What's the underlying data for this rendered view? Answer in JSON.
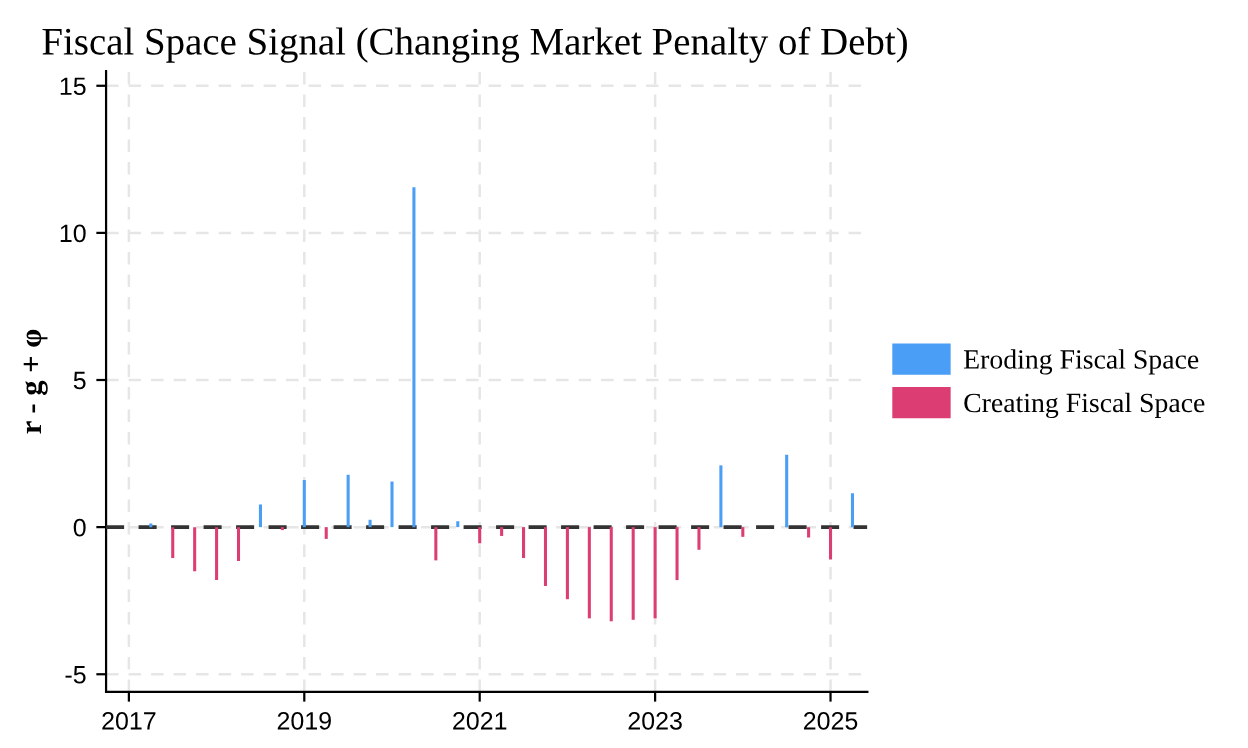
{
  "chart_data": {
    "type": "bar",
    "title": "Fiscal Space Signal (Changing Market Penalty of Debt)",
    "ylabel": "r - g + φ",
    "x": [
      2017.25,
      2017.5,
      2017.75,
      2018.0,
      2018.25,
      2018.5,
      2018.75,
      2019.0,
      2019.25,
      2019.5,
      2019.75,
      2020.0,
      2020.25,
      2020.5,
      2020.75,
      2021.0,
      2021.25,
      2021.5,
      2021.75,
      2022.0,
      2022.25,
      2022.5,
      2022.75,
      2023.0,
      2023.25,
      2023.5,
      2023.75,
      2024.0,
      2024.5,
      2024.75,
      2025.0,
      2025.25
    ],
    "series": [
      {
        "name": "Eroding Fiscal Space",
        "color": "#4a9ef5",
        "values": [
          0.12,
          null,
          null,
          null,
          null,
          0.77,
          null,
          1.6,
          null,
          1.78,
          0.25,
          1.55,
          11.55,
          null,
          0.2,
          null,
          null,
          null,
          null,
          null,
          null,
          null,
          null,
          null,
          null,
          null,
          2.1,
          null,
          2.46,
          null,
          null,
          1.15
        ]
      },
      {
        "name": "Creating Fiscal Space",
        "color": "#dc3e73",
        "values": [
          null,
          -1.05,
          -1.5,
          -1.8,
          -1.15,
          null,
          -0.1,
          null,
          -0.4,
          null,
          null,
          null,
          null,
          -1.13,
          null,
          -0.55,
          -0.3,
          -1.05,
          -2.0,
          -2.45,
          -3.1,
          -3.2,
          -3.15,
          -3.1,
          -1.8,
          -0.77,
          null,
          -0.33,
          null,
          -0.35,
          -1.1,
          null
        ]
      }
    ],
    "xlim": [
      2016.74,
      2025.42
    ],
    "xticks": [
      2017,
      2019,
      2021,
      2023,
      2025
    ],
    "ylim": [
      -5.6,
      15.5
    ],
    "yticks": [
      -5,
      0,
      5,
      10,
      15
    ],
    "ref_lines": [
      {
        "axis": "y",
        "value": 0,
        "color": "#333333",
        "line_style": "dashed"
      }
    ],
    "grid": true,
    "legend": "right"
  }
}
